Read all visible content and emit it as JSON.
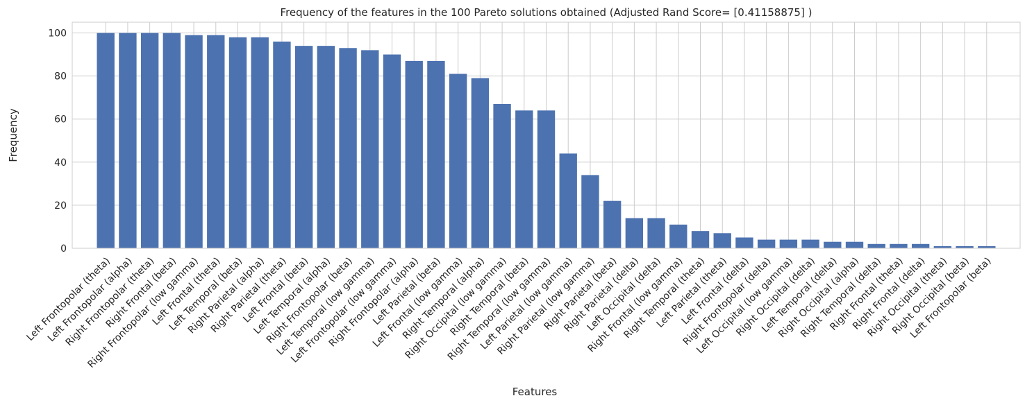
{
  "chart_data": {
    "type": "bar",
    "title": "Frequency of the features in the 100 Pareto solutions obtained (Adjusted Rand Score= [0.41158875] )",
    "xlabel": "Features",
    "ylabel": "Frequency",
    "ylim": [
      0,
      105
    ],
    "yticks": [
      0,
      20,
      40,
      60,
      80,
      100
    ],
    "grid": true,
    "bar_color": "#4c72b0",
    "categories": [
      "Left Frontopolar (theta)",
      "Left Frontopolar (alpha)",
      "Right Frontopolar (theta)",
      "Right Frontal (beta)",
      "Right Frontopolar (low gamma)",
      "Left Frontal (theta)",
      "Left Temporal (beta)",
      "Right Parietal (alpha)",
      "Right Parietal (theta)",
      "Left Frontal (beta)",
      "Left Temporal (alpha)",
      "Right Frontopolar (beta)",
      "Left Temporal (low gamma)",
      "Left Frontopolar (low gamma)",
      "Right Frontopolar (alpha)",
      "Left Parietal (beta)",
      "Left Frontal (low gamma)",
      "Right Temporal (alpha)",
      "Right Occipital (low gamma)",
      "Right Temporal (beta)",
      "Right Temporal (low gamma)",
      "Left Parietal (low gamma)",
      "Right Parietal (low gamma)",
      "Right Parietal (beta)",
      "Right Parietal (delta)",
      "Left Occipital (delta)",
      "Right Frontal (low gamma)",
      "Right Temporal (theta)",
      "Left Parietal (theta)",
      "Left Frontal (delta)",
      "Right Frontopolar (delta)",
      "Left Occipital (low gamma)",
      "Right Occipital (delta)",
      "Left Temporal (delta)",
      "Right Occipital (alpha)",
      "Right Temporal (delta)",
      "Right Frontal (theta)",
      "Right Frontal (delta)",
      "Right Occipital (theta)",
      "Right Occipital (beta)",
      "Left Frontopolar (beta)"
    ],
    "values": [
      100,
      100,
      100,
      100,
      99,
      99,
      98,
      98,
      96,
      94,
      94,
      93,
      92,
      90,
      87,
      87,
      81,
      79,
      67,
      64,
      64,
      44,
      34,
      22,
      14,
      14,
      11,
      8,
      7,
      5,
      4,
      4,
      4,
      3,
      3,
      2,
      2,
      2,
      1,
      1,
      1
    ]
  }
}
